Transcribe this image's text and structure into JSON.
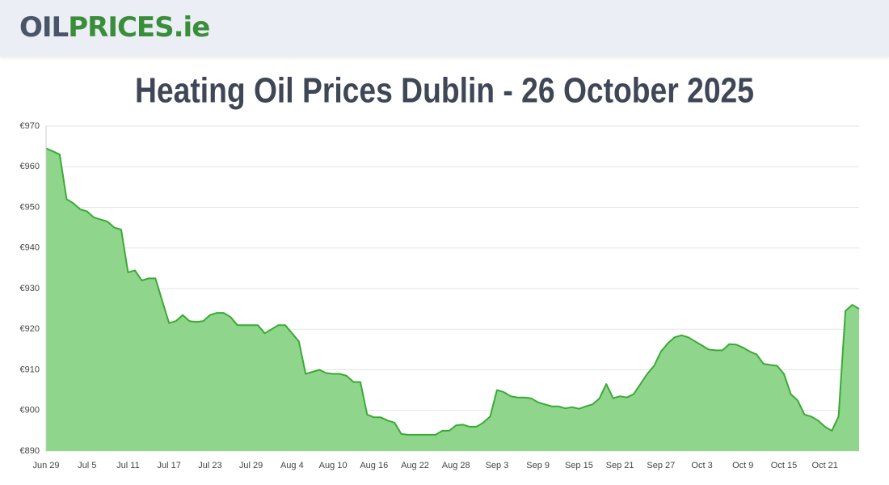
{
  "header": {
    "logo_a": "OIL",
    "logo_b": "PRICES.ie"
  },
  "chart_data": {
    "type": "area",
    "title": "Heating Oil Prices Dublin - 26 October 2025",
    "categories": [
      "Jun 29",
      null,
      null,
      null,
      null,
      null,
      "Jul 5",
      null,
      null,
      null,
      null,
      null,
      "Jul 11",
      null,
      null,
      null,
      null,
      null,
      "Jul 17",
      null,
      null,
      null,
      null,
      null,
      "Jul 23",
      null,
      null,
      null,
      null,
      null,
      "Jul 29",
      null,
      null,
      null,
      null,
      null,
      "Aug 4",
      null,
      null,
      null,
      null,
      null,
      "Aug 10",
      null,
      null,
      null,
      null,
      null,
      "Aug 16",
      null,
      null,
      null,
      null,
      null,
      "Aug 22",
      null,
      null,
      null,
      null,
      null,
      "Aug 28",
      null,
      null,
      null,
      null,
      null,
      "Sep 3",
      null,
      null,
      null,
      null,
      null,
      "Sep 9",
      null,
      null,
      null,
      null,
      null,
      "Sep 15",
      null,
      null,
      null,
      null,
      null,
      "Sep 21",
      null,
      null,
      null,
      null,
      null,
      "Sep 27",
      null,
      null,
      null,
      null,
      null,
      "Oct 3",
      null,
      null,
      null,
      null,
      null,
      "Oct 9",
      null,
      null,
      null,
      null,
      null,
      "Oct 15",
      null,
      null,
      null,
      null,
      null,
      "Oct 21",
      null,
      null,
      null,
      null,
      null
    ],
    "values": [
      964.5,
      963.8,
      963,
      952,
      951,
      949.5,
      949,
      947.5,
      947,
      946.5,
      945,
      944.5,
      934,
      934.5,
      932,
      932.5,
      932.5,
      927,
      921.5,
      922,
      923.5,
      922,
      921.8,
      922,
      923.5,
      924,
      924,
      923,
      921,
      921,
      921,
      921,
      919,
      920,
      921,
      921,
      919,
      917,
      909,
      909.5,
      910,
      909.2,
      909,
      909,
      908.5,
      907,
      907,
      899,
      898.3,
      898.3,
      897.5,
      897,
      894.2,
      894,
      894,
      894,
      894,
      894,
      895,
      895,
      896.3,
      896.5,
      896,
      896,
      897,
      898.5,
      905,
      904.5,
      903.5,
      903.2,
      903.2,
      903,
      902,
      901.5,
      901,
      901,
      900.5,
      900.8,
      900.4,
      901,
      901.5,
      903,
      906.5,
      903,
      903.5,
      903.2,
      904,
      906.5,
      909,
      911,
      914.5,
      916.5,
      918,
      918.5,
      918,
      917,
      916,
      915,
      914.8,
      914.8,
      916.3,
      916.2,
      915.5,
      914.5,
      913.8,
      911.5,
      911.2,
      911,
      909,
      904,
      902.5,
      899,
      898.5,
      897.5,
      896,
      895,
      898.5,
      924.5,
      926,
      925
    ],
    "color": "#3aaa35",
    "fill": "#8fd68c",
    "ylim": [
      890,
      970
    ],
    "yticks": [
      {
        "value": 890,
        "label": "€890"
      },
      {
        "value": 900,
        "label": "€900"
      },
      {
        "value": 910,
        "label": "€910"
      },
      {
        "value": 920,
        "label": "€920"
      },
      {
        "value": 930,
        "label": "€930"
      },
      {
        "value": 940,
        "label": "€940"
      },
      {
        "value": 950,
        "label": "€950"
      },
      {
        "value": 960,
        "label": "€960"
      },
      {
        "value": 970,
        "label": "€970"
      }
    ],
    "grid": true
  }
}
